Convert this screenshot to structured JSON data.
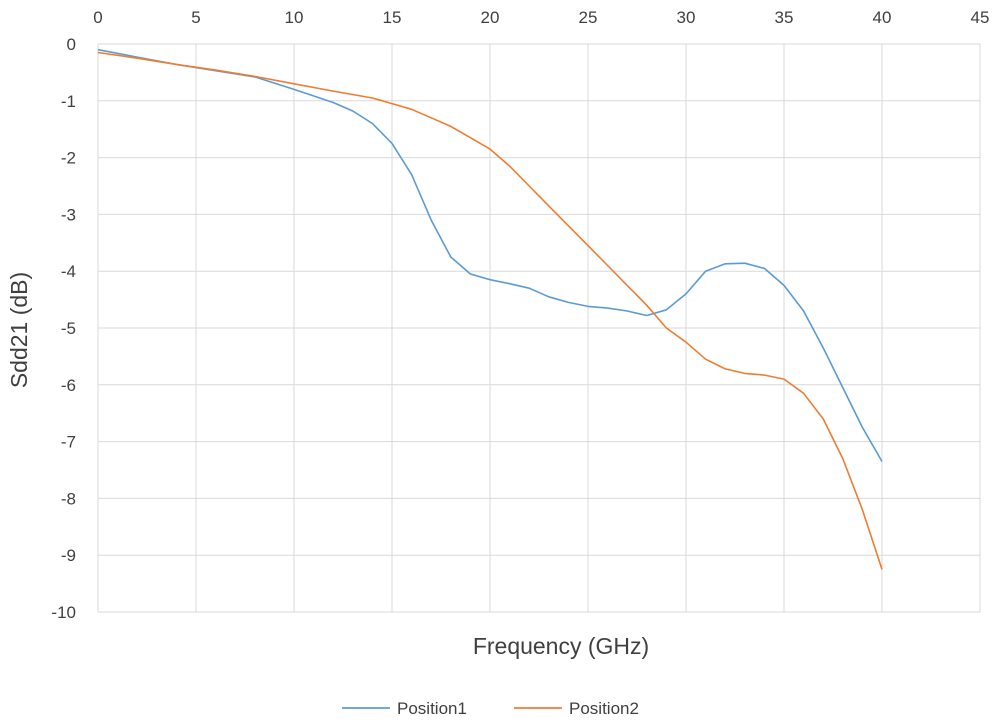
{
  "chart_data": {
    "type": "line",
    "xlabel": "Frequency (GHz)",
    "ylabel": "Sdd21 (dB)",
    "xlim": [
      0,
      45
    ],
    "ylim": [
      -10,
      0
    ],
    "xticks": [
      0,
      5,
      10,
      15,
      20,
      25,
      30,
      35,
      40,
      45
    ],
    "yticks": [
      0,
      -1,
      -2,
      -3,
      -4,
      -5,
      -6,
      -7,
      -8,
      -9,
      -10
    ],
    "x_axis_position": "top",
    "grid": true,
    "legend_position": "bottom",
    "series": [
      {
        "name": "Position1",
        "color": "#5B9BD5",
        "points": [
          [
            0,
            -0.1
          ],
          [
            2,
            -0.23
          ],
          [
            4,
            -0.36
          ],
          [
            6,
            -0.47
          ],
          [
            8,
            -0.58
          ],
          [
            10,
            -0.8
          ],
          [
            12,
            -1.03
          ],
          [
            13,
            -1.18
          ],
          [
            14,
            -1.4
          ],
          [
            15,
            -1.75
          ],
          [
            16,
            -2.3
          ],
          [
            17,
            -3.1
          ],
          [
            18,
            -3.75
          ],
          [
            19,
            -4.05
          ],
          [
            20,
            -4.15
          ],
          [
            21,
            -4.22
          ],
          [
            22,
            -4.3
          ],
          [
            23,
            -4.45
          ],
          [
            24,
            -4.55
          ],
          [
            25,
            -4.62
          ],
          [
            26,
            -4.65
          ],
          [
            27,
            -4.7
          ],
          [
            28,
            -4.78
          ],
          [
            29,
            -4.68
          ],
          [
            30,
            -4.4
          ],
          [
            31,
            -4.0
          ],
          [
            32,
            -3.87
          ],
          [
            33,
            -3.86
          ],
          [
            34,
            -3.95
          ],
          [
            35,
            -4.25
          ],
          [
            36,
            -4.7
          ],
          [
            37,
            -5.35
          ],
          [
            38,
            -6.05
          ],
          [
            39,
            -6.75
          ],
          [
            40,
            -7.35
          ]
        ]
      },
      {
        "name": "Position2",
        "color": "#ED7D31",
        "points": [
          [
            0,
            -0.15
          ],
          [
            2,
            -0.25
          ],
          [
            4,
            -0.36
          ],
          [
            6,
            -0.46
          ],
          [
            8,
            -0.57
          ],
          [
            10,
            -0.7
          ],
          [
            12,
            -0.83
          ],
          [
            14,
            -0.95
          ],
          [
            15,
            -1.05
          ],
          [
            16,
            -1.15
          ],
          [
            17,
            -1.3
          ],
          [
            18,
            -1.45
          ],
          [
            19,
            -1.65
          ],
          [
            20,
            -1.85
          ],
          [
            21,
            -2.15
          ],
          [
            22,
            -2.5
          ],
          [
            23,
            -2.85
          ],
          [
            24,
            -3.2
          ],
          [
            25,
            -3.55
          ],
          [
            26,
            -3.9
          ],
          [
            27,
            -4.25
          ],
          [
            28,
            -4.6
          ],
          [
            29,
            -5.0
          ],
          [
            30,
            -5.25
          ],
          [
            31,
            -5.55
          ],
          [
            32,
            -5.72
          ],
          [
            33,
            -5.8
          ],
          [
            34,
            -5.83
          ],
          [
            35,
            -5.9
          ],
          [
            36,
            -6.15
          ],
          [
            37,
            -6.6
          ],
          [
            38,
            -7.3
          ],
          [
            39,
            -8.2
          ],
          [
            40,
            -9.25
          ]
        ]
      }
    ]
  }
}
